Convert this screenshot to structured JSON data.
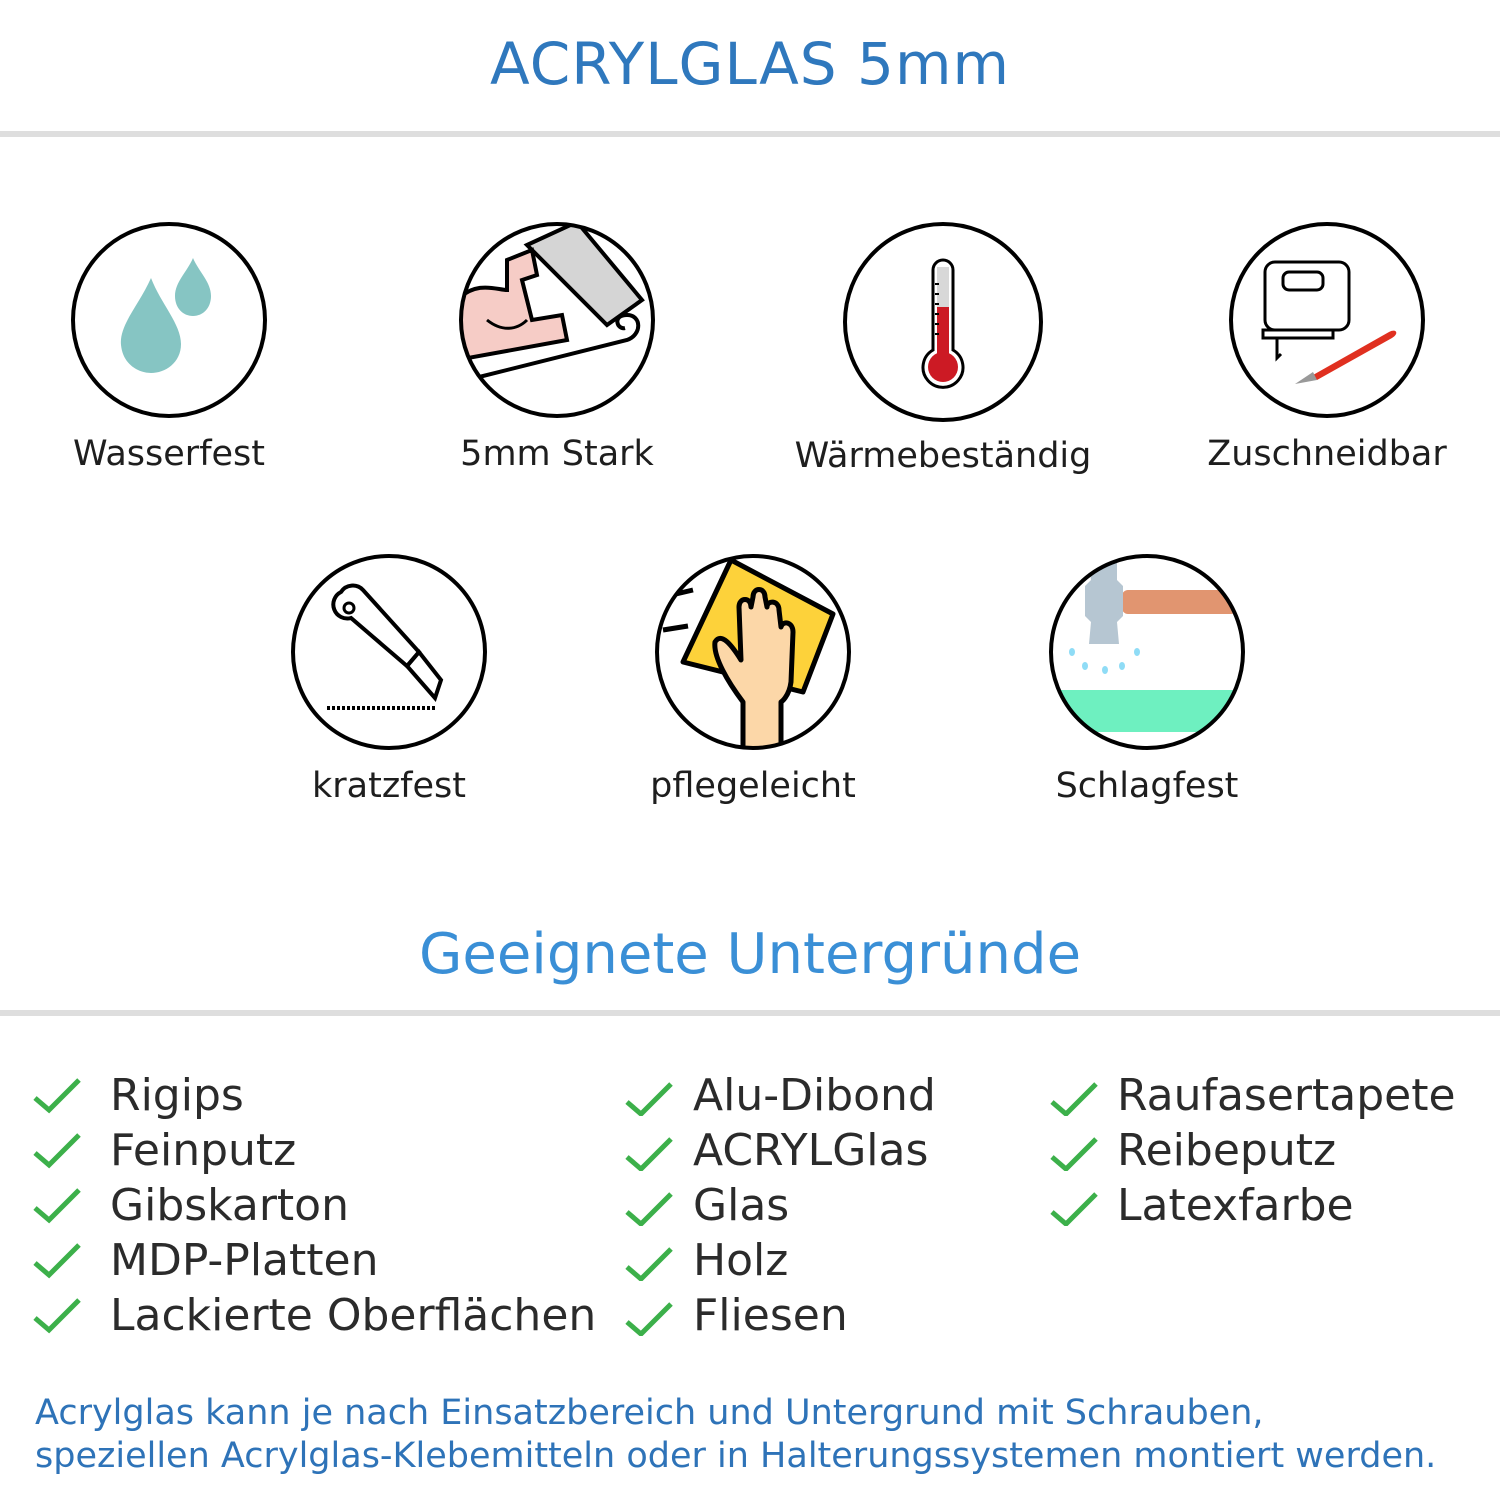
{
  "header": {
    "title": "ACRYLGLAS 5mm"
  },
  "features": [
    {
      "label": "Wasserfest",
      "icon": "water-drops-icon"
    },
    {
      "label": "5mm Stark",
      "icon": "strong-arm-icon"
    },
    {
      "label": "Wärmebeständig",
      "icon": "thermometer-icon"
    },
    {
      "label": "Zuschneidbar",
      "icon": "jigsaw-cutter-icon"
    },
    {
      "label": "kratzfest",
      "icon": "cutter-knife-icon"
    },
    {
      "label": "pflegeleicht",
      "icon": "hand-sponge-icon"
    },
    {
      "label": "Schlagfest",
      "icon": "hammer-icon"
    }
  ],
  "surfaces": {
    "heading": "Geeignete Untergründe",
    "columns": [
      [
        "Rigips",
        "Feinputz",
        "Gibskarton",
        "MDP-Platten",
        "Lackierte Oberflächen"
      ],
      [
        "Alu-Dibond",
        "ACRYLGlas",
        "Glas",
        "Holz",
        "Fliesen"
      ],
      [
        "Raufasertapete",
        "Reibeputz",
        "Latexfarbe"
      ]
    ],
    "check_color": "#3cb04a"
  },
  "footer": {
    "line1": "Acrylglas kann je nach Einsatzbereich und Untergrund mit Schrauben,",
    "line2": "speziellen Acrylglas-Klebemitteln oder in Halterungssystemen montiert werden."
  },
  "colors": {
    "title": "#2f78bd",
    "heading": "#3a8fd6",
    "footer": "#2e73b8"
  }
}
